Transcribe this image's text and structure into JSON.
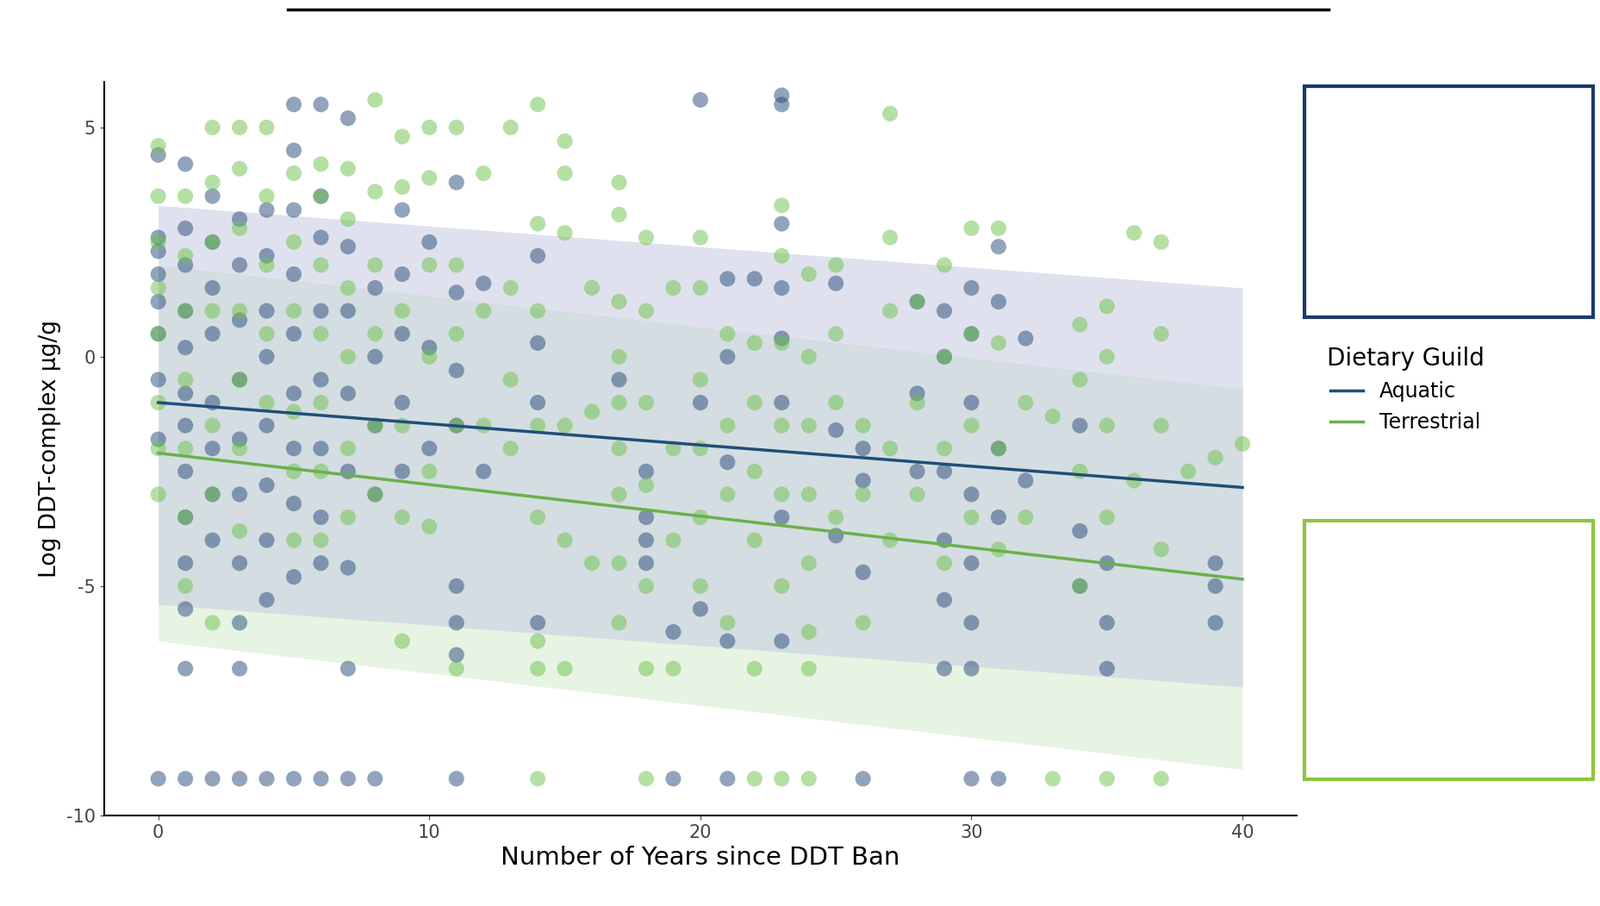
{
  "chart_data": {
    "type": "scatter",
    "xlabel": "Number of Years since DDT Ban",
    "ylabel": "Log DDT-complex µg/g",
    "legend_title": "Dietary Guild",
    "legend": "center left",
    "xlim": [
      -2,
      42
    ],
    "xticks": [
      0,
      10,
      20,
      30,
      40
    ],
    "ylim": [
      -10,
      6
    ],
    "yticks": [
      -10,
      -5,
      0,
      5
    ],
    "grid": false,
    "series": [
      {
        "name": "Aquatic",
        "color": "#27497a",
        "marker": "circle",
        "x": [
          0,
          0,
          0,
          0,
          0,
          0,
          0,
          0,
          0,
          1,
          1,
          1,
          1,
          1,
          1,
          1,
          1,
          1,
          1,
          1,
          1,
          1,
          2,
          2,
          2,
          2,
          2,
          2,
          2,
          2,
          2,
          3,
          3,
          3,
          3,
          3,
          3,
          3,
          3,
          3,
          3,
          4,
          4,
          4,
          4,
          4,
          4,
          4,
          4,
          4,
          5,
          5,
          5,
          5,
          5,
          5,
          5,
          5,
          5,
          5,
          6,
          6,
          6,
          6,
          6,
          6,
          6,
          6,
          6,
          7,
          7,
          7,
          7,
          7,
          7,
          7,
          7,
          8,
          8,
          8,
          8,
          8,
          9,
          9,
          9,
          9,
          9,
          10,
          10,
          10,
          11,
          11,
          11,
          11,
          11,
          11,
          11,
          11,
          12,
          12,
          14,
          14,
          14,
          14,
          17,
          18,
          18,
          18,
          18,
          19,
          19,
          20,
          20,
          20,
          21,
          21,
          21,
          21,
          21,
          22,
          23,
          23,
          23,
          23,
          23,
          23,
          23,
          23,
          25,
          25,
          25,
          26,
          26,
          26,
          26,
          28,
          28,
          28,
          29,
          29,
          29,
          29,
          29,
          29,
          30,
          30,
          30,
          30,
          30,
          30,
          30,
          30,
          31,
          31,
          31,
          31,
          31,
          32,
          32,
          34,
          34,
          34,
          35,
          35,
          35,
          39,
          39,
          39
        ],
        "values": [
          4.4,
          2.6,
          2.3,
          1.8,
          1.2,
          0.5,
          -0.5,
          -1.8,
          -9.2,
          4.2,
          2.8,
          2.0,
          1.0,
          0.2,
          -0.8,
          -1.5,
          -2.5,
          -3.5,
          -4.5,
          -5.5,
          -6.8,
          -9.2,
          3.5,
          2.5,
          1.5,
          0.5,
          -1.0,
          -2.0,
          -3.0,
          -4.0,
          -9.2,
          3.0,
          2.0,
          0.8,
          -0.5,
          -1.8,
          -3.0,
          -4.5,
          -5.8,
          -6.8,
          -9.2,
          3.2,
          2.2,
          1.0,
          0.0,
          -1.5,
          -2.8,
          -4.0,
          -5.3,
          -9.2,
          5.5,
          4.5,
          3.2,
          1.8,
          0.5,
          -0.8,
          -2.0,
          -3.2,
          -4.8,
          -9.2,
          5.5,
          3.5,
          2.6,
          1.0,
          -0.5,
          -2.0,
          -3.5,
          -4.5,
          -9.2,
          5.2,
          2.4,
          1.0,
          -0.8,
          -2.5,
          -4.6,
          -6.8,
          -9.2,
          1.5,
          0.0,
          -1.5,
          -3.0,
          -9.2,
          3.2,
          1.8,
          0.5,
          -1.0,
          -2.5,
          2.5,
          0.2,
          -2.0,
          3.8,
          1.4,
          -0.3,
          -1.5,
          -5.0,
          -5.8,
          -6.5,
          -9.2,
          1.6,
          -2.5,
          2.2,
          0.3,
          -1.0,
          -5.8,
          -0.5,
          -2.5,
          -3.5,
          -4.0,
          -4.5,
          -6.0,
          -9.2,
          5.6,
          -1.0,
          -5.5,
          1.7,
          0.0,
          -2.3,
          -6.2,
          -9.2,
          1.7,
          5.7,
          5.5,
          2.9,
          1.5,
          0.4,
          -1.0,
          -3.5,
          -6.2,
          1.6,
          -1.6,
          -3.9,
          -2.0,
          -2.7,
          -4.7,
          -9.2,
          1.2,
          -0.8,
          -2.5,
          1.0,
          0.0,
          -2.5,
          -4.0,
          -5.3,
          -6.8,
          1.5,
          0.5,
          -1.0,
          -3.0,
          -4.5,
          -5.8,
          -6.8,
          -9.2,
          2.4,
          1.2,
          -2.0,
          -3.5,
          -9.2,
          0.4,
          -2.7,
          -1.5,
          -3.8,
          -5.0,
          -4.5,
          -5.8,
          -6.8,
          -4.5,
          -5.0,
          -5.8
        ],
        "fit": {
          "color": "#1f4e79",
          "band_color": "#c5cbe0",
          "x": [
            0,
            40
          ],
          "values": [
            -1.0,
            -2.85
          ],
          "lower": [
            -5.4,
            -7.2
          ],
          "upper": [
            3.3,
            1.5
          ]
        }
      },
      {
        "name": "Terrestrial",
        "color": "#6cc24a",
        "marker": "circle",
        "x": [
          0,
          0,
          0,
          0,
          0,
          0,
          0,
          0,
          1,
          1,
          1,
          1,
          1,
          1,
          1,
          2,
          2,
          2,
          2,
          2,
          2,
          2,
          3,
          3,
          3,
          3,
          3,
          3,
          3,
          4,
          4,
          4,
          4,
          4,
          5,
          5,
          5,
          5,
          5,
          5,
          6,
          6,
          6,
          6,
          6,
          6,
          6,
          7,
          7,
          7,
          7,
          7,
          7,
          8,
          8,
          8,
          8,
          8,
          8,
          9,
          9,
          9,
          9,
          9,
          9,
          10,
          10,
          10,
          10,
          10,
          10,
          11,
          11,
          11,
          11,
          11,
          12,
          12,
          12,
          13,
          13,
          13,
          13,
          14,
          14,
          14,
          14,
          14,
          14,
          14,
          14,
          15,
          15,
          15,
          15,
          15,
          15,
          16,
          16,
          16,
          17,
          17,
          17,
          17,
          17,
          17,
          17,
          17,
          17,
          18,
          18,
          18,
          18,
          18,
          18,
          18,
          19,
          19,
          19,
          19,
          20,
          20,
          20,
          20,
          20,
          20,
          21,
          21,
          21,
          21,
          22,
          22,
          22,
          22,
          22,
          22,
          23,
          23,
          23,
          23,
          23,
          23,
          23,
          24,
          24,
          24,
          24,
          24,
          24,
          24,
          24,
          25,
          25,
          25,
          25,
          26,
          26,
          26,
          27,
          27,
          27,
          27,
          27,
          28,
          28,
          28,
          29,
          29,
          29,
          29,
          30,
          30,
          30,
          30,
          31,
          31,
          31,
          31,
          32,
          32,
          33,
          33,
          34,
          34,
          34,
          34,
          35,
          35,
          35,
          35,
          35,
          36,
          36,
          37,
          37,
          37,
          37,
          37,
          38,
          39,
          40
        ],
        "values": [
          4.6,
          3.5,
          2.5,
          1.5,
          0.5,
          -1.0,
          -2.0,
          -3.0,
          3.5,
          2.2,
          1.0,
          -0.5,
          -2.0,
          -3.5,
          -5.0,
          5.0,
          3.8,
          2.5,
          1.0,
          -1.5,
          -3.0,
          -5.8,
          5.0,
          4.1,
          2.8,
          1.0,
          -0.5,
          -2.0,
          -3.8,
          5.0,
          3.5,
          2.0,
          0.5,
          -1.0,
          4.0,
          2.5,
          1.0,
          -1.2,
          -2.5,
          -4.0,
          4.2,
          3.5,
          2.0,
          0.5,
          -1.0,
          -2.5,
          -4.0,
          4.1,
          3.0,
          1.5,
          0.0,
          -2.0,
          -3.5,
          5.6,
          3.6,
          2.0,
          0.5,
          -1.5,
          -3.0,
          4.8,
          3.7,
          1.0,
          -1.5,
          -3.5,
          -6.2,
          5.0,
          3.9,
          2.0,
          0.0,
          -2.5,
          -3.7,
          5.0,
          2.0,
          0.5,
          -1.5,
          -6.8,
          4.0,
          1.0,
          -1.5,
          5.0,
          1.5,
          -0.5,
          -2.0,
          5.5,
          2.9,
          1.0,
          -1.5,
          -3.5,
          -6.2,
          -6.8,
          -9.2,
          4.7,
          4.0,
          2.7,
          -1.5,
          -4.0,
          -6.8,
          1.5,
          -1.2,
          -4.5,
          3.8,
          3.1,
          1.2,
          0.0,
          -1.0,
          -2.0,
          -3.0,
          -4.5,
          -5.8,
          2.6,
          1.0,
          -1.0,
          -2.8,
          -5.0,
          -6.8,
          -9.2,
          1.5,
          -2.0,
          -4.0,
          -6.8,
          2.6,
          1.5,
          -0.5,
          -2.0,
          -3.5,
          -5.0,
          0.5,
          -1.5,
          -3.0,
          -5.8,
          0.3,
          -1.0,
          -2.5,
          -4.0,
          -6.8,
          -9.2,
          3.3,
          2.2,
          0.3,
          -1.5,
          -3.0,
          -5.0,
          -9.2,
          1.8,
          0.0,
          -1.5,
          -3.0,
          -4.5,
          -6.0,
          -6.8,
          -9.2,
          2.0,
          0.5,
          -1.0,
          -3.5,
          -1.5,
          -3.0,
          -5.8,
          5.3,
          2.6,
          1.0,
          -2.0,
          -4.0,
          1.2,
          -1.0,
          -3.0,
          2.0,
          0.0,
          -2.0,
          -4.5,
          2.8,
          0.5,
          -1.5,
          -3.5,
          2.8,
          0.3,
          -2.0,
          -4.2,
          -1.0,
          -3.5,
          -1.3,
          -9.2,
          0.7,
          -0.5,
          -2.5,
          -5.0,
          1.1,
          0.0,
          -1.5,
          -3.5,
          -9.2,
          2.7,
          -2.7,
          2.5,
          0.5,
          -1.5,
          -4.2,
          -9.2,
          -2.5,
          -2.2,
          -1.9
        ],
        "fit": {
          "color": "#6ab04c",
          "band_color": "#d4ebcc",
          "x": [
            0,
            40
          ],
          "values": [
            -2.1,
            -4.85
          ],
          "lower": [
            -6.2,
            -9.0
          ],
          "upper": [
            2.0,
            -0.7
          ]
        }
      }
    ]
  }
}
